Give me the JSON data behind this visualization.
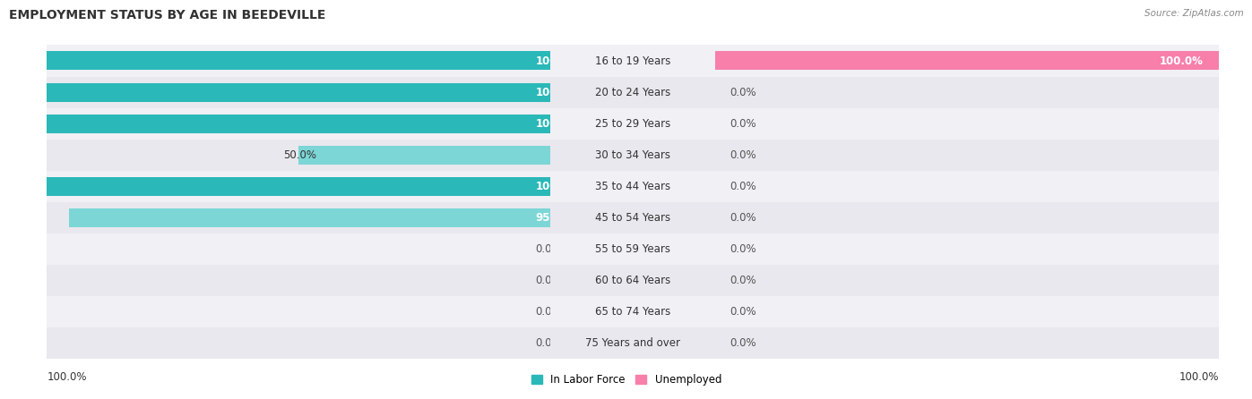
{
  "title": "EMPLOYMENT STATUS BY AGE IN BEEDEVILLE",
  "source": "Source: ZipAtlas.com",
  "age_groups": [
    "16 to 19 Years",
    "20 to 24 Years",
    "25 to 29 Years",
    "30 to 34 Years",
    "35 to 44 Years",
    "45 to 54 Years",
    "55 to 59 Years",
    "60 to 64 Years",
    "65 to 74 Years",
    "75 Years and over"
  ],
  "labor_force": [
    100.0,
    100.0,
    100.0,
    50.0,
    100.0,
    95.5,
    0.0,
    0.0,
    0.0,
    0.0
  ],
  "unemployed": [
    100.0,
    0.0,
    0.0,
    0.0,
    0.0,
    0.0,
    0.0,
    0.0,
    0.0,
    0.0
  ],
  "labor_color_full": "#2ab8b8",
  "labor_color_partial": "#7dd6d6",
  "labor_color_zero": "#a8e4e4",
  "unemployed_color_full": "#f77faa",
  "unemployed_color_partial": "#f9aec8",
  "unemployed_color_zero": "#f9c4d8",
  "figure_bg": "#ffffff",
  "row_bg_colors": [
    "#f0f0f5",
    "#e8e8ee"
  ],
  "title_fontsize": 10,
  "label_fontsize": 8.5,
  "source_fontsize": 7.5,
  "bar_height": 0.6,
  "xlim": 100
}
